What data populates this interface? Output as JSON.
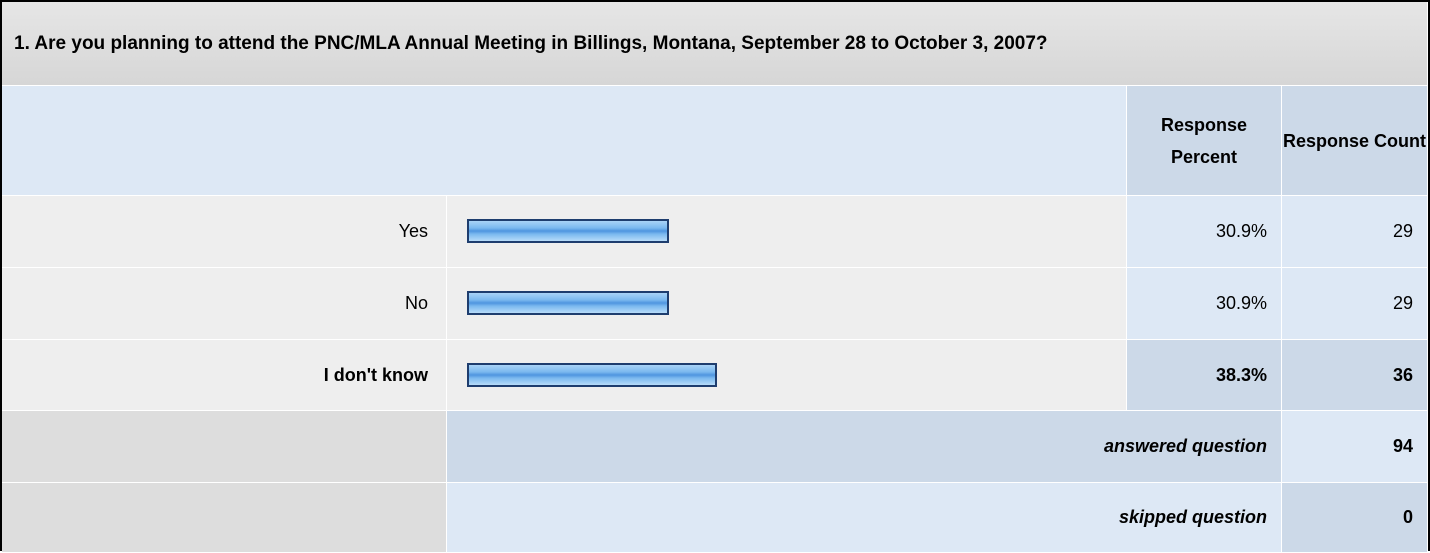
{
  "table": {
    "question": "1. Are you planning to attend the PNC/MLA Annual Meeting in Billings, Montana, September 28 to October 3, 2007?",
    "headers": [
      "Response Percent",
      "Response Count"
    ],
    "rows": [
      {
        "label": "Yes",
        "percent": 30.9,
        "percent_label": "30.9%",
        "count": 29
      },
      {
        "label": "No",
        "percent": 30.9,
        "percent_label": "30.9%",
        "count": 29
      },
      {
        "label": "I don't know",
        "percent": 38.3,
        "percent_label": "38.3%",
        "count": 36
      }
    ],
    "answered": {
      "label": "answered question",
      "count": 94
    },
    "skipped": {
      "label": "skipped question",
      "count": 0
    }
  }
}
